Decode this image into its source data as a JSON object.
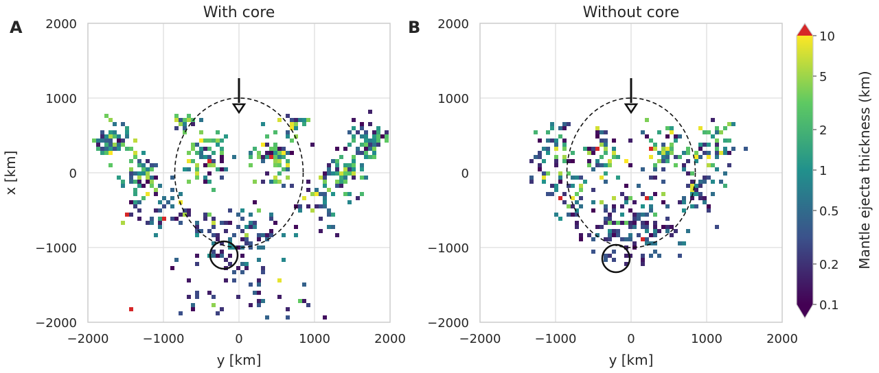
{
  "chart_data": [
    {
      "type": "heatmap",
      "panel_letter": "A",
      "title": "With core",
      "xlabel": "y [km]",
      "ylabel": "x [km]",
      "xlim": [
        -2000,
        2000
      ],
      "ylim": [
        -2000,
        2000
      ],
      "xticks": [
        -2000,
        -1000,
        0,
        1000,
        2000
      ],
      "yticks": [
        -2000,
        -1000,
        0,
        1000,
        2000
      ],
      "xtick_labels": [
        "−2000",
        "−1000",
        "0",
        "1000",
        "2000"
      ],
      "ytick_labels": [
        "−2000",
        "−1000",
        "0",
        "1000",
        "2000"
      ],
      "grid": true,
      "impact_arrow": {
        "y": 0,
        "x_from": 1250,
        "x_to": 850
      },
      "dashed_ellipse": {
        "cy": 0,
        "cx": 0,
        "ry": 850,
        "rx": 1000
      },
      "circle_marker": {
        "y": -200,
        "x": -1100,
        "r": 190
      },
      "clusters": [
        {
          "y": -1700,
          "x": 450,
          "sy": 110,
          "sx": 130,
          "n": 70,
          "hi": 0.7
        },
        {
          "y": 1700,
          "x": 450,
          "sy": 110,
          "sx": 130,
          "n": 70,
          "hi": 0.7
        },
        {
          "y": -1350,
          "x": 0,
          "sy": 130,
          "sx": 160,
          "n": 60,
          "hi": 0.65
        },
        {
          "y": 1350,
          "x": 0,
          "sy": 130,
          "sx": 160,
          "n": 60,
          "hi": 0.65
        },
        {
          "y": -450,
          "x": 250,
          "sy": 150,
          "sx": 200,
          "n": 65,
          "hi": 0.7
        },
        {
          "y": 450,
          "x": 250,
          "sy": 150,
          "sx": 200,
          "n": 65,
          "hi": 0.7
        },
        {
          "y": -750,
          "x": 700,
          "sy": 80,
          "sx": 60,
          "n": 18,
          "hi": 0.8
        },
        {
          "y": 750,
          "x": 700,
          "sy": 80,
          "sx": 60,
          "n": 18,
          "hi": 0.8
        },
        {
          "y": -1000,
          "x": -400,
          "sy": 220,
          "sx": 220,
          "n": 45,
          "hi": 0.4
        },
        {
          "y": 1000,
          "x": -400,
          "sy": 220,
          "sx": 220,
          "n": 45,
          "hi": 0.4
        },
        {
          "y": -300,
          "x": -800,
          "sy": 180,
          "sx": 180,
          "n": 35,
          "hi": 0.3
        },
        {
          "y": 300,
          "x": -800,
          "sy": 180,
          "sx": 180,
          "n": 35,
          "hi": 0.3
        },
        {
          "y": 0,
          "x": -1300,
          "sy": 300,
          "sx": 200,
          "n": 30,
          "hi": 0.15
        },
        {
          "y": -500,
          "x": -1700,
          "sy": 300,
          "sx": 150,
          "n": 15,
          "hi": 0.1
        },
        {
          "y": 500,
          "x": -1700,
          "sy": 300,
          "sx": 150,
          "n": 15,
          "hi": 0.1
        }
      ]
    },
    {
      "type": "heatmap",
      "panel_letter": "B",
      "title": "Without core",
      "xlabel": "y [km]",
      "xlim": [
        -2000,
        2000
      ],
      "ylim": [
        -2000,
        2000
      ],
      "xticks": [
        -2000,
        -1000,
        0,
        1000,
        2000
      ],
      "yticks": [
        -2000,
        -1000,
        0,
        1000,
        2000
      ],
      "xtick_labels": [
        "−2000",
        "−1000",
        "0",
        "1000",
        "2000"
      ],
      "ytick_labels": [
        "−2000",
        "−1000",
        "0",
        "1000",
        "2000"
      ],
      "grid": true,
      "impact_arrow": {
        "y": 0,
        "x_from": 1250,
        "x_to": 850
      },
      "dashed_ellipse": {
        "cy": 0,
        "cx": 0,
        "ry": 850,
        "rx": 1000
      },
      "circle_marker": {
        "y": -200,
        "x": -1150,
        "r": 190
      },
      "clusters": [
        {
          "y": -1050,
          "x": 350,
          "sy": 140,
          "sx": 200,
          "n": 55,
          "hi": 0.6
        },
        {
          "y": 1050,
          "x": 350,
          "sy": 140,
          "sx": 200,
          "n": 55,
          "hi": 0.6
        },
        {
          "y": -400,
          "x": 300,
          "sy": 130,
          "sx": 170,
          "n": 50,
          "hi": 0.65
        },
        {
          "y": 400,
          "x": 300,
          "sy": 130,
          "sx": 170,
          "n": 50,
          "hi": 0.65
        },
        {
          "y": -800,
          "x": -300,
          "sy": 180,
          "sx": 180,
          "n": 40,
          "hi": 0.3
        },
        {
          "y": 800,
          "x": -300,
          "sy": 180,
          "sx": 180,
          "n": 40,
          "hi": 0.3
        },
        {
          "y": -300,
          "x": -700,
          "sy": 200,
          "sx": 180,
          "n": 40,
          "hi": 0.3
        },
        {
          "y": 300,
          "x": -700,
          "sy": 200,
          "sx": 180,
          "n": 40,
          "hi": 0.3
        },
        {
          "y": 0,
          "x": -400,
          "sy": 150,
          "sx": 250,
          "n": 30,
          "hi": 0.3
        },
        {
          "y": 0,
          "x": -1050,
          "sy": 350,
          "sx": 80,
          "n": 20,
          "hi": 0.1
        }
      ]
    }
  ],
  "colorbar": {
    "label": "Mantle ejecta thickness (km)",
    "scale": "log",
    "range": [
      0.1,
      10
    ],
    "ticks": [
      {
        "value": 10,
        "label": "10"
      },
      {
        "value": 5,
        "label": "5"
      },
      {
        "value": 2,
        "label": "2"
      },
      {
        "value": 1,
        "label": "1"
      },
      {
        "value": 0.5,
        "label": "0.5"
      },
      {
        "value": 0.2,
        "label": "0.2"
      },
      {
        "value": 0.1,
        "label": "0.1"
      }
    ],
    "colormap": "viridis",
    "over_color": "#d62728",
    "under_color": "#440154"
  }
}
